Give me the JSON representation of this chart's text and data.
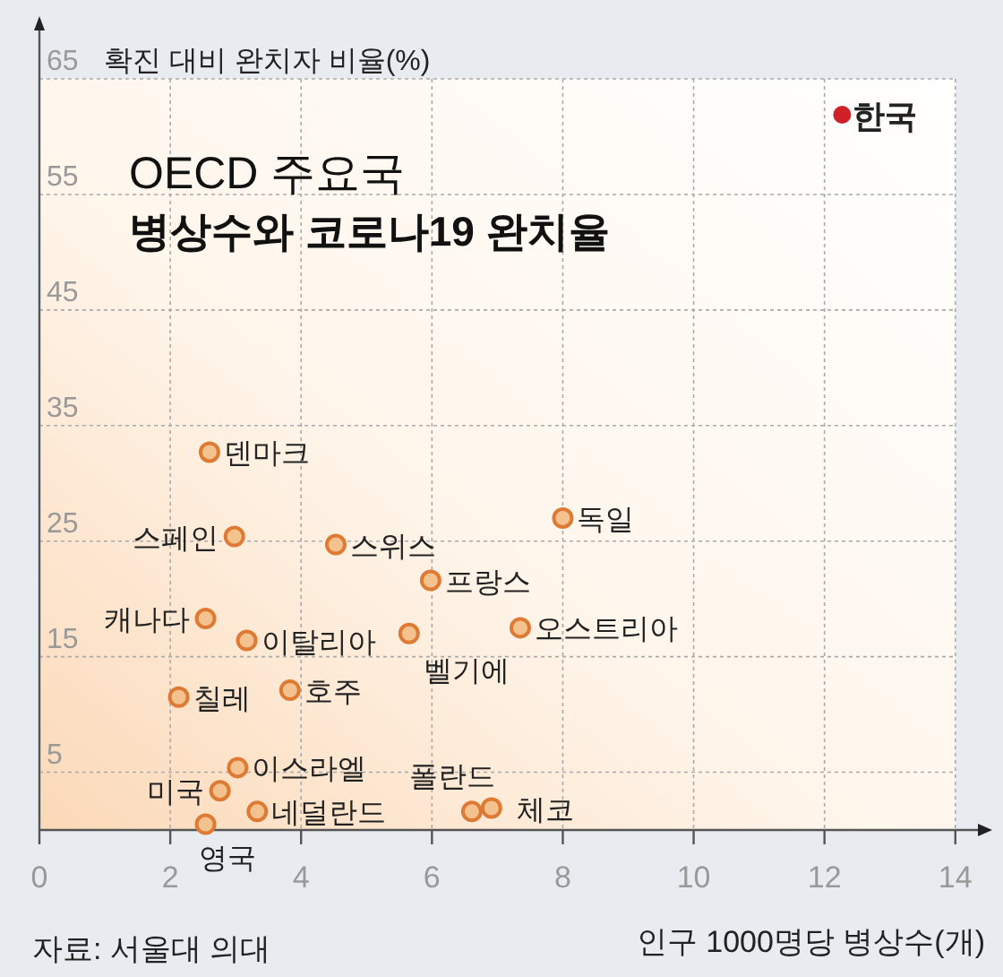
{
  "chart_data": {
    "type": "scatter",
    "title": "OECD 주요국",
    "subtitle": "병상수와 코로나19 완치율",
    "xlabel": "인구 1000명당 병상수(개)",
    "ylabel": "확진 대비 완치자 비율(%)",
    "series": [
      {
        "x": [
          2.6,
          2.98,
          4.53,
          8.0,
          5.98,
          2.54,
          3.17,
          5.65,
          7.35,
          2.13,
          3.83,
          3.03,
          2.76,
          3.33,
          2.54,
          6.61,
          6.91,
          12.27
        ],
        "values": [
          32.7,
          25.4,
          24.7,
          27.0,
          21.6,
          18.3,
          16.4,
          17.0,
          17.5,
          11.5,
          12.1,
          5.4,
          3.4,
          1.6,
          0.5,
          1.6,
          1.9,
          61.9
        ],
        "colors": [
          "#f4c28f",
          "#f4c28f",
          "#f4c28f",
          "#f4c28f",
          "#f4c28f",
          "#f4c28f",
          "#f4c28f",
          "#f4c28f",
          "#f4c28f",
          "#f4c28f",
          "#f4c28f",
          "#f4c28f",
          "#f4c28f",
          "#f4c28f",
          "#f4c28f",
          "#f4c28f",
          "#f4c28f",
          "#d0202a"
        ]
      }
    ],
    "xlim": [
      0,
      14.4
    ],
    "ylim": [
      0,
      69.5
    ],
    "xticks": [
      0,
      2,
      4,
      6,
      8,
      10,
      12,
      14
    ],
    "yticks": [
      5,
      15,
      25,
      35,
      45,
      55,
      65
    ],
    "grid": true,
    "marker": "circle",
    "annotations": [
      {
        "text": "덴마크",
        "x": 2.6,
        "y": 32.7
      },
      {
        "text": "스페인",
        "x": 2.98,
        "y": 25.4
      },
      {
        "text": "스위스",
        "x": 4.53,
        "y": 24.7
      },
      {
        "text": "독일",
        "x": 8.0,
        "y": 27.0
      },
      {
        "text": "프랑스",
        "x": 5.98,
        "y": 21.6
      },
      {
        "text": "캐나다",
        "x": 2.54,
        "y": 18.3
      },
      {
        "text": "이탈리아",
        "x": 3.17,
        "y": 16.4
      },
      {
        "text": "벨기에",
        "x": 5.65,
        "y": 17.0
      },
      {
        "text": "오스트리아",
        "x": 7.35,
        "y": 17.5
      },
      {
        "text": "칠레",
        "x": 2.13,
        "y": 11.5
      },
      {
        "text": "호주",
        "x": 3.83,
        "y": 12.1
      },
      {
        "text": "이스라엘",
        "x": 3.03,
        "y": 5.4
      },
      {
        "text": "미국",
        "x": 2.76,
        "y": 3.4
      },
      {
        "text": "네덜란드",
        "x": 3.33,
        "y": 1.6
      },
      {
        "text": "영국",
        "x": 2.54,
        "y": 0.5
      },
      {
        "text": "폴란드",
        "x": 6.61,
        "y": 1.6
      },
      {
        "text": "체코",
        "x": 6.91,
        "y": 1.9
      },
      {
        "text": "한국",
        "x": 12.27,
        "y": 61.9
      },
      "자료: 서울대 의대"
    ]
  }
}
